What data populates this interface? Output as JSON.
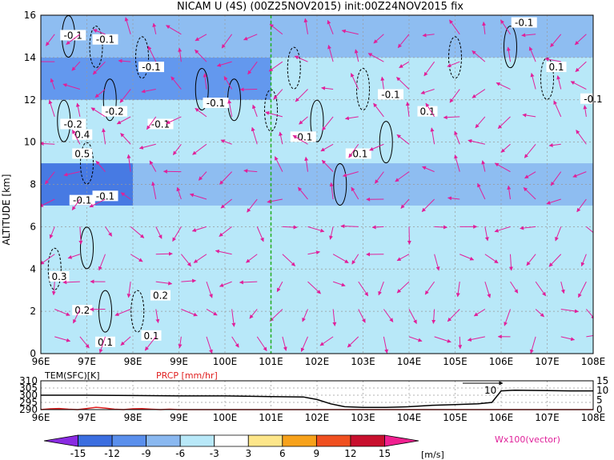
{
  "chart_data": [
    {
      "type": "heatmap",
      "title": "NICAM U (4S) (00Z25NOV2015) init:00Z24NOV2015 fix",
      "xlabel": "",
      "ylabel": "ALTITUDE [km]",
      "x_tick_labels": [
        "96E",
        "97E",
        "98E",
        "99E",
        "100E",
        "101E",
        "102E",
        "103E",
        "104E",
        "105E",
        "106E",
        "107E",
        "108E"
      ],
      "x_ticks": [
        96,
        97,
        98,
        99,
        100,
        101,
        102,
        103,
        104,
        105,
        106,
        107,
        108
      ],
      "xlim": [
        96,
        108
      ],
      "y_ticks": [
        0,
        2,
        4,
        6,
        8,
        10,
        12,
        14,
        16
      ],
      "ylim": [
        0,
        16
      ],
      "grid": true,
      "marker_line_lon": 101,
      "contour_labels": [
        "-0.1",
        "-0.1",
        "-0.1",
        "-0.2",
        "-0.1",
        "-0.1",
        "-0.2",
        "0.4",
        "0.5",
        "-0.1",
        "-0.1",
        "-0.1",
        "0.1",
        "-0.1",
        "-0.1",
        "-0.1",
        "0.1",
        "-0.1",
        "0.3",
        "0.2",
        "0.1",
        "0.2",
        "0.1"
      ],
      "u_field_bands": [
        {
          "z": [
            0,
            4
          ],
          "lon": [
            96,
            101
          ],
          "u": -3
        },
        {
          "z": [
            4,
            7
          ],
          "lon": [
            96,
            108
          ],
          "u": -3
        },
        {
          "z": [
            7,
            9
          ],
          "lon": [
            96,
            98
          ],
          "u": -12
        },
        {
          "z": [
            7,
            9
          ],
          "lon": [
            98,
            108
          ],
          "u": -6
        },
        {
          "z": [
            9,
            12
          ],
          "lon": [
            96,
            108
          ],
          "u": -3
        },
        {
          "z": [
            12,
            14
          ],
          "lon": [
            96,
            101
          ],
          "u": -9
        },
        {
          "z": [
            14,
            16
          ],
          "lon": [
            96,
            108
          ],
          "u": -6
        }
      ]
    },
    {
      "type": "line",
      "legend": [
        {
          "label": "TEM(SFC)[K]",
          "color": "#000000"
        },
        {
          "label": "PRCP [mm/hr]",
          "color": "#e02020"
        }
      ],
      "x_tick_labels": [
        "96E",
        "97E",
        "98E",
        "99E",
        "100E",
        "101E",
        "102E",
        "103E",
        "104E",
        "105E",
        "106E",
        "107E",
        "108E"
      ],
      "left_y_ticks": [
        "310",
        "305",
        "300",
        "295",
        "290"
      ],
      "right_y_ticks": [
        "15",
        "10",
        "5",
        "0"
      ],
      "left_ylim": [
        290,
        310
      ],
      "right_ylim": [
        0,
        15
      ],
      "marker_label": "10",
      "series": [
        {
          "name": "TEM(SFC)[K]",
          "axis": "left",
          "x": [
            96,
            97,
            98,
            99,
            100,
            101,
            101.7,
            102,
            102.3,
            102.6,
            103,
            103.5,
            104,
            104.5,
            105,
            105.5,
            105.8,
            106,
            106.3,
            107,
            107.5,
            108
          ],
          "values": [
            300,
            300,
            299.8,
            299.5,
            299.5,
            299,
            298.8,
            297,
            294,
            292,
            291.5,
            291.5,
            292,
            293,
            293.5,
            294,
            295,
            303,
            303.5,
            303.2,
            303,
            303
          ]
        },
        {
          "name": "PRCP [mm/hr]",
          "axis": "right",
          "x": [
            96,
            96.2,
            96.4,
            96.6,
            96.8,
            97,
            97.2,
            97.4,
            97.6,
            97.8,
            98,
            98.2,
            98.4,
            98.6,
            98.8,
            99,
            108
          ],
          "values": [
            0,
            0.4,
            0.6,
            0.2,
            0,
            0.6,
            1.2,
            0.8,
            0.2,
            0,
            0.4,
            0.5,
            0.2,
            0,
            0.2,
            0,
            0
          ]
        }
      ]
    },
    {
      "type": "colorbar",
      "tick_labels": [
        "-15",
        "-12",
        "-9",
        "-6",
        "-3",
        "3",
        "6",
        "9",
        "12",
        "15"
      ],
      "unit": "[m/s]",
      "colors": [
        "#8a2be2",
        "#3b6ee0",
        "#5a8fec",
        "#8ab8f0",
        "#b8e8f8",
        "#ffffff",
        "#fde68a",
        "#f7a21b",
        "#f05020",
        "#c8102e",
        "#f02090"
      ],
      "vector_label": "Wx100(vector)"
    }
  ],
  "colors": {
    "vector": "#e0209a",
    "contour": "#000000",
    "green_line": "#21b021",
    "prcp": "#e02020"
  }
}
